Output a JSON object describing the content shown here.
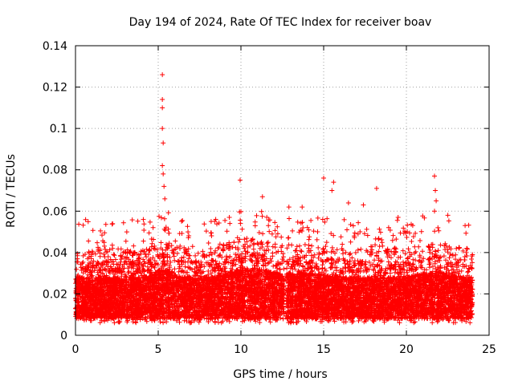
{
  "chart_data": {
    "type": "scatter",
    "title": "Day 194 of 2024, Rate Of TEC Index for receiver boav",
    "xlabel": "GPS time / hours",
    "ylabel": "ROTI / TECUs",
    "xlim": [
      0,
      25
    ],
    "ylim": [
      0,
      0.14
    ],
    "xticks": [
      0,
      5,
      10,
      15,
      20,
      25
    ],
    "xtick_labels": [
      "0",
      "5",
      "10",
      "15",
      "20",
      "25"
    ],
    "yticks": [
      0,
      0.02,
      0.04,
      0.06,
      0.08,
      0.1,
      0.12,
      0.14
    ],
    "ytick_labels": [
      "0",
      "0.02",
      "0.04",
      "0.06",
      "0.08",
      "0.1",
      "0.12",
      "0.14"
    ],
    "grid": true,
    "marker": "+",
    "color": "#ff0000",
    "x_coverage": [
      [
        0,
        12.6
      ],
      [
        12.75,
        24
      ]
    ],
    "baseline_range": [
      0.005,
      0.035
    ],
    "notable_points": [
      {
        "x": 5.25,
        "y": 0.126
      },
      {
        "x": 5.25,
        "y": 0.114
      },
      {
        "x": 5.25,
        "y": 0.11
      },
      {
        "x": 5.25,
        "y": 0.1
      },
      {
        "x": 5.3,
        "y": 0.093
      },
      {
        "x": 5.25,
        "y": 0.082
      },
      {
        "x": 5.3,
        "y": 0.078
      },
      {
        "x": 5.35,
        "y": 0.072
      },
      {
        "x": 5.4,
        "y": 0.066
      },
      {
        "x": 3.1,
        "y": 0.05
      },
      {
        "x": 4.1,
        "y": 0.056
      },
      {
        "x": 9.95,
        "y": 0.075
      },
      {
        "x": 11.3,
        "y": 0.067
      },
      {
        "x": 15.0,
        "y": 0.076
      },
      {
        "x": 15.6,
        "y": 0.074
      },
      {
        "x": 15.5,
        "y": 0.07
      },
      {
        "x": 18.2,
        "y": 0.071
      },
      {
        "x": 21.7,
        "y": 0.077
      },
      {
        "x": 21.75,
        "y": 0.07
      },
      {
        "x": 21.8,
        "y": 0.065
      },
      {
        "x": 21.7,
        "y": 0.06
      },
      {
        "x": 13.7,
        "y": 0.062
      },
      {
        "x": 12.9,
        "y": 0.062
      },
      {
        "x": 16.5,
        "y": 0.064
      },
      {
        "x": 17.4,
        "y": 0.063
      },
      {
        "x": 19.5,
        "y": 0.057
      },
      {
        "x": 8.2,
        "y": 0.055
      },
      {
        "x": 9.3,
        "y": 0.057
      },
      {
        "x": 6.8,
        "y": 0.05
      }
    ]
  }
}
